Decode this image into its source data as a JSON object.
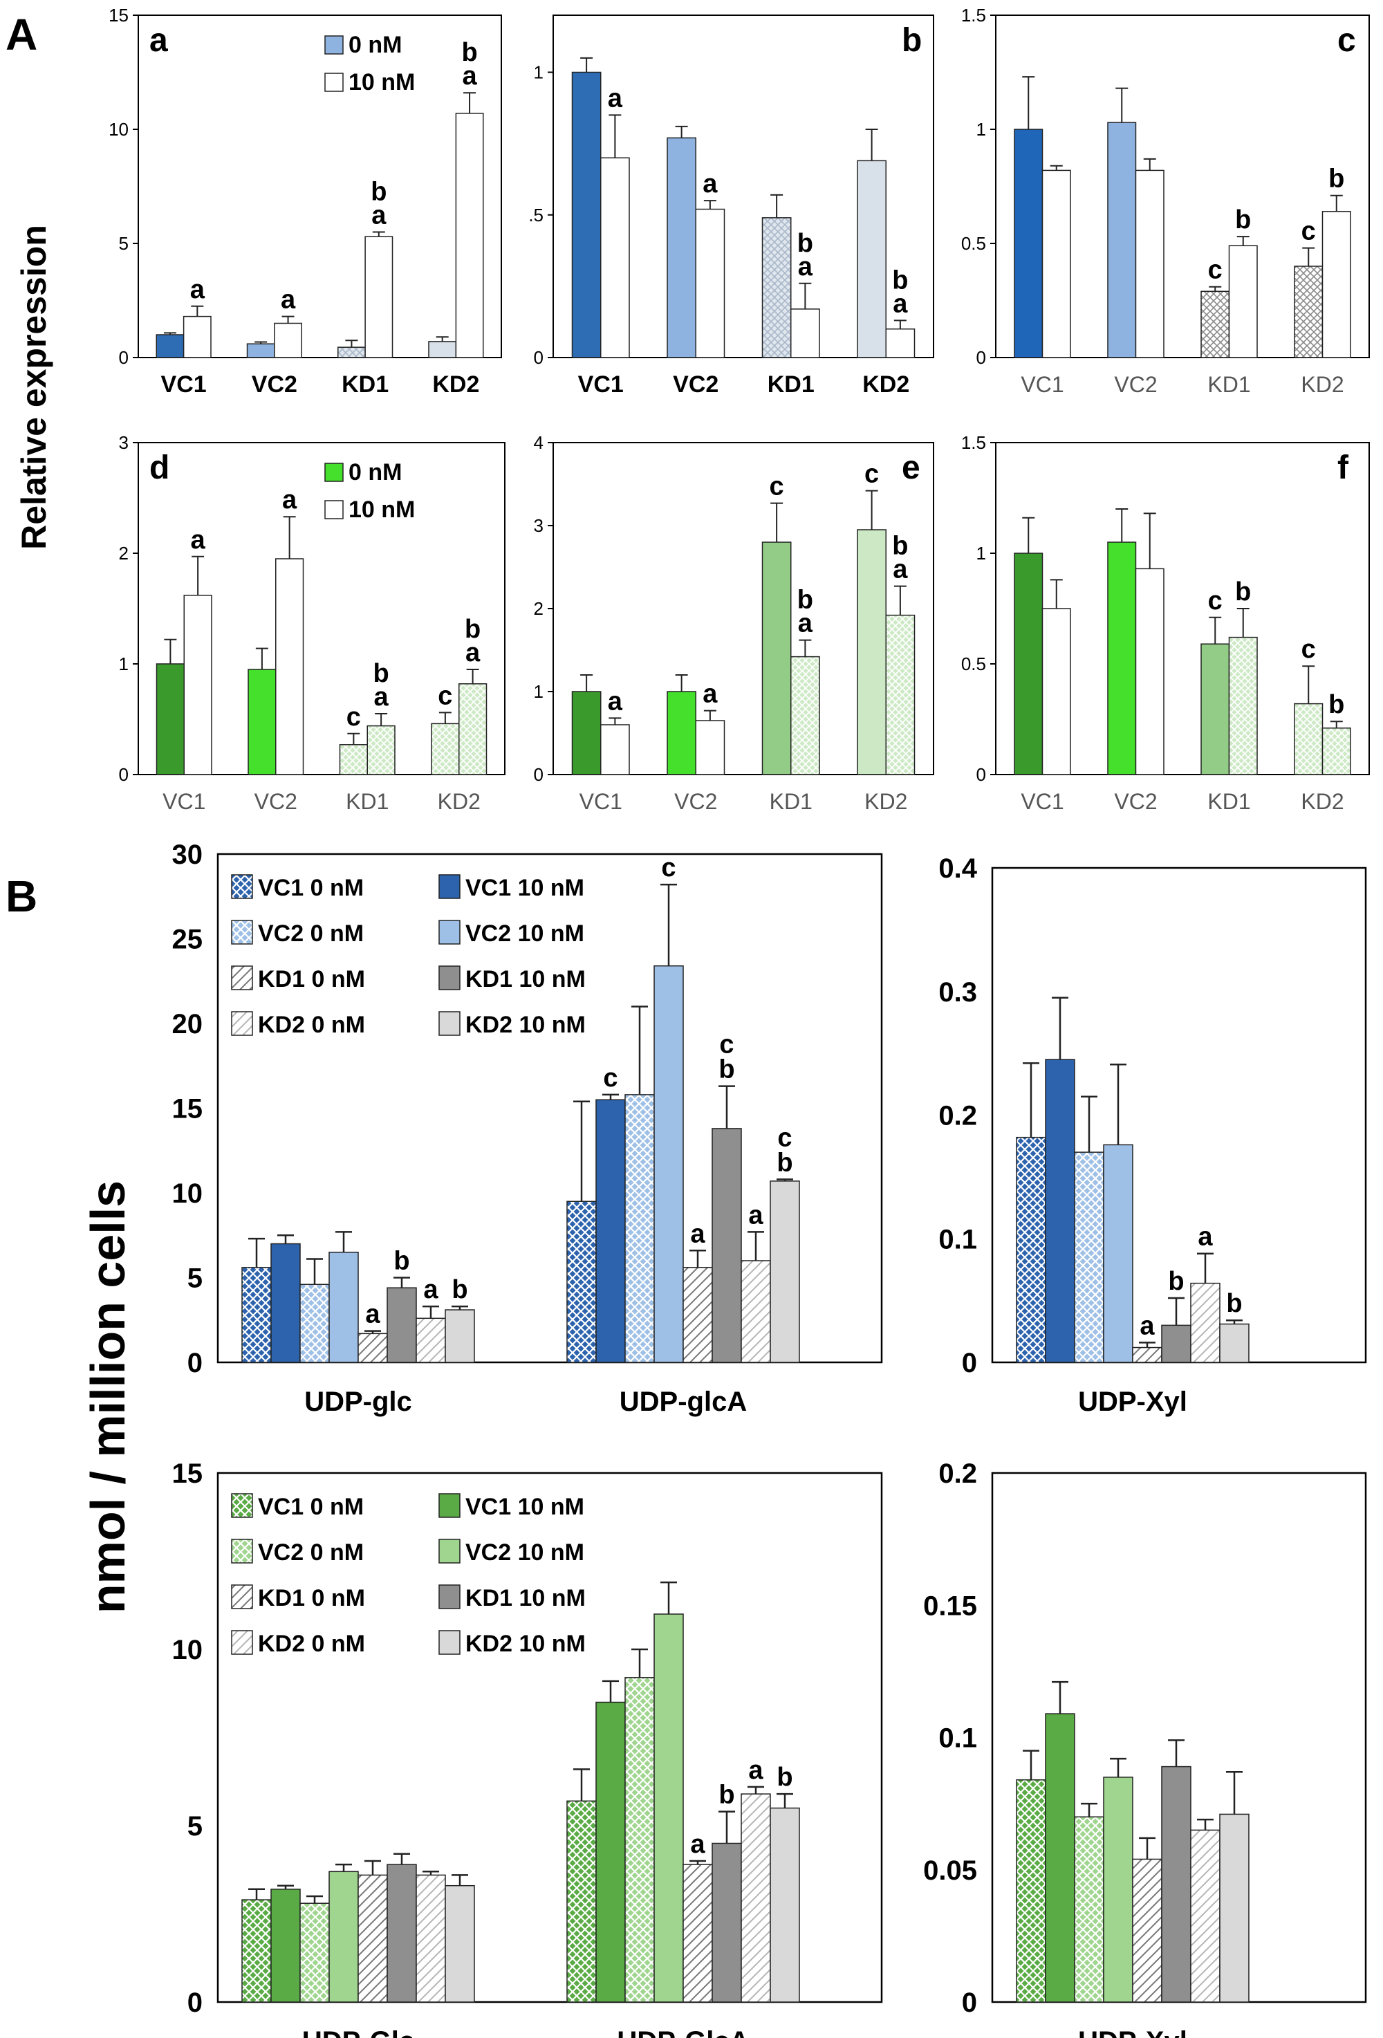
{
  "panel_letters": {
    "A": "A",
    "B": "B"
  },
  "axis_titles": {
    "relative_expression": "Relative expression",
    "nmol_cells": "nmol / million cells"
  },
  "colors": {
    "blue": {
      "vc1": "#2e6db4",
      "vc2": "#8fb3e0",
      "kd1": "#b8c8dc",
      "kd2": "#d8e0ea"
    },
    "green": {
      "vc1": "#3a9a2c",
      "vc2": "#44e02c",
      "kd1": "#93cc86",
      "kd2": "#cce8c4"
    },
    "blueB": {
      "vc1_0": "#2d63ad",
      "vc1_10": "#2d63ad",
      "vc2_0": "#8fb3e0",
      "vc2_10": "#8fb3e0",
      "kd1_0": "#ffffff",
      "kd1_10": "#8f8f8f",
      "kd2_0": "#ffffff",
      "kd2_10": "#d9d9d9"
    },
    "greenB": {
      "vc1_0": "#5aab45",
      "vc1_10": "#5aab45",
      "vc2_0": "#9fd58e",
      "vc2_10": "#9fd58e",
      "kd1_0": "#ffffff",
      "kd1_10": "#8f8f8f",
      "kd2_0": "#ffffff",
      "kd2_10": "#d9d9d9"
    }
  },
  "chart_data": [
    {
      "id": "a",
      "panel_label": "a",
      "type": "bar",
      "categories": [
        "VC1",
        "VC2",
        "KD1",
        "KD2"
      ],
      "ylim": [
        0,
        15
      ],
      "yticks": [
        "0",
        "5",
        "10",
        "15"
      ],
      "legend": [
        "0 nM",
        "10 nM"
      ],
      "series": [
        {
          "name": "0 nM",
          "values": [
            1.0,
            0.6,
            0.45,
            0.7
          ],
          "errors": [
            0.08,
            0.08,
            0.3,
            0.2
          ]
        },
        {
          "name": "10 nM",
          "values": [
            1.8,
            1.5,
            5.3,
            10.7
          ],
          "errors": [
            0.45,
            0.3,
            0.2,
            0.9
          ]
        }
      ],
      "annotations": [
        {
          "series": 1,
          "index": 0,
          "lines": [
            "a"
          ]
        },
        {
          "series": 1,
          "index": 1,
          "lines": [
            "a"
          ]
        },
        {
          "series": 1,
          "index": 2,
          "lines": [
            "b",
            "a"
          ]
        },
        {
          "series": 1,
          "index": 3,
          "lines": [
            "b",
            "a"
          ]
        }
      ]
    },
    {
      "id": "b",
      "panel_label": "b",
      "type": "bar",
      "categories": [
        "VC1",
        "VC2",
        "KD1",
        "KD2"
      ],
      "ylim": [
        0,
        1.2
      ],
      "yticks": [
        "0",
        ".5",
        "1"
      ],
      "ytick_values": [
        0,
        0.5,
        1
      ],
      "series": [
        {
          "name": "0 nM",
          "values": [
            1.0,
            0.77,
            0.49,
            0.69
          ],
          "errors": [
            0.05,
            0.04,
            0.08,
            0.11
          ]
        },
        {
          "name": "10 nM",
          "values": [
            0.7,
            0.52,
            0.17,
            0.1
          ],
          "errors": [
            0.15,
            0.03,
            0.09,
            0.03
          ]
        }
      ],
      "annotations": [
        {
          "series": 1,
          "index": 0,
          "lines": [
            "a"
          ]
        },
        {
          "series": 1,
          "index": 1,
          "lines": [
            "a"
          ]
        },
        {
          "series": 1,
          "index": 2,
          "lines": [
            "b",
            "a"
          ]
        },
        {
          "series": 1,
          "index": 3,
          "lines": [
            "b",
            "a"
          ]
        }
      ]
    },
    {
      "id": "c",
      "panel_label": "c",
      "type": "bar",
      "categories": [
        "VC1",
        "VC2",
        "KD1",
        "KD2"
      ],
      "ylim": [
        0,
        1.5
      ],
      "yticks": [
        "0",
        "0.5",
        "1",
        "1.5"
      ],
      "ytick_values": [
        0,
        0.5,
        1,
        1.5
      ],
      "series": [
        {
          "name": "0 nM",
          "values": [
            1.0,
            1.03,
            0.29,
            0.4
          ],
          "errors": [
            0.23,
            0.15,
            0.02,
            0.08
          ]
        },
        {
          "name": "10 nM",
          "values": [
            0.82,
            0.82,
            0.49,
            0.64
          ],
          "errors": [
            0.02,
            0.05,
            0.04,
            0.07
          ]
        }
      ],
      "annotations": [
        {
          "series": 0,
          "index": 2,
          "lines": [
            "c"
          ]
        },
        {
          "series": 0,
          "index": 3,
          "lines": [
            "c"
          ]
        },
        {
          "series": 1,
          "index": 2,
          "lines": [
            "b"
          ]
        },
        {
          "series": 1,
          "index": 3,
          "lines": [
            "b"
          ]
        }
      ]
    },
    {
      "id": "d",
      "panel_label": "d",
      "type": "bar",
      "categories": [
        "VC1",
        "VC2",
        "KD1",
        "KD2"
      ],
      "ylim": [
        0,
        3
      ],
      "yticks": [
        "0",
        "1",
        "2",
        "3"
      ],
      "ytick_values": [
        0,
        1,
        2,
        3
      ],
      "legend": [
        "0 nM",
        "10 nM"
      ],
      "series": [
        {
          "name": "0 nM",
          "values": [
            1.0,
            0.95,
            0.27,
            0.46
          ],
          "errors": [
            0.22,
            0.19,
            0.1,
            0.1
          ]
        },
        {
          "name": "10 nM",
          "values": [
            1.62,
            1.95,
            0.44,
            0.82
          ],
          "errors": [
            0.35,
            0.38,
            0.11,
            0.13
          ]
        }
      ],
      "annotations": [
        {
          "series": 1,
          "index": 0,
          "lines": [
            "a"
          ]
        },
        {
          "series": 1,
          "index": 1,
          "lines": [
            "a"
          ]
        },
        {
          "series": 0,
          "index": 2,
          "lines": [
            "c"
          ]
        },
        {
          "series": 0,
          "index": 3,
          "lines": [
            "c"
          ]
        },
        {
          "series": 1,
          "index": 2,
          "lines": [
            "b",
            "a"
          ]
        },
        {
          "series": 1,
          "index": 3,
          "lines": [
            "b",
            "a"
          ]
        }
      ]
    },
    {
      "id": "e",
      "panel_label": "e",
      "type": "bar",
      "categories": [
        "VC1",
        "VC2",
        "KD1",
        "KD2"
      ],
      "ylim": [
        0,
        4
      ],
      "yticks": [
        "0",
        "1",
        "2",
        "3",
        "4"
      ],
      "ytick_values": [
        0,
        1,
        2,
        3,
        4
      ],
      "series": [
        {
          "name": "0 nM",
          "values": [
            1.0,
            1.0,
            2.8,
            2.95
          ],
          "errors": [
            0.2,
            0.2,
            0.47,
            0.47
          ]
        },
        {
          "name": "10 nM",
          "values": [
            0.6,
            0.65,
            1.42,
            1.92
          ],
          "errors": [
            0.08,
            0.12,
            0.2,
            0.35
          ]
        }
      ],
      "annotations": [
        {
          "series": 1,
          "index": 0,
          "lines": [
            "a"
          ]
        },
        {
          "series": 1,
          "index": 1,
          "lines": [
            "a"
          ]
        },
        {
          "series": 0,
          "index": 2,
          "lines": [
            "c"
          ]
        },
        {
          "series": 0,
          "index": 3,
          "lines": [
            "c"
          ]
        },
        {
          "series": 1,
          "index": 2,
          "lines": [
            "b",
            "a"
          ]
        },
        {
          "series": 1,
          "index": 3,
          "lines": [
            "b",
            "a"
          ]
        }
      ]
    },
    {
      "id": "f",
      "panel_label": "f",
      "type": "bar",
      "categories": [
        "VC1",
        "VC2",
        "KD1",
        "KD2"
      ],
      "ylim": [
        0,
        1.5
      ],
      "yticks": [
        "0",
        "0.5",
        "1",
        "1.5"
      ],
      "ytick_values": [
        0,
        0.5,
        1,
        1.5
      ],
      "series": [
        {
          "name": "0 nM",
          "values": [
            1.0,
            1.05,
            0.59,
            0.32
          ],
          "errors": [
            0.16,
            0.15,
            0.12,
            0.17
          ]
        },
        {
          "name": "10 nM",
          "values": [
            0.75,
            0.93,
            0.62,
            0.21
          ],
          "errors": [
            0.13,
            0.25,
            0.13,
            0.03
          ]
        }
      ],
      "annotations": [
        {
          "series": 0,
          "index": 2,
          "lines": [
            "c"
          ]
        },
        {
          "series": 0,
          "index": 3,
          "lines": [
            "c"
          ]
        },
        {
          "series": 1,
          "index": 2,
          "lines": [
            "b"
          ]
        },
        {
          "series": 1,
          "index": 3,
          "lines": [
            "b"
          ]
        }
      ]
    },
    {
      "id": "B1",
      "type": "bar",
      "categories": [
        "UDP-glc",
        "UDP-glcA"
      ],
      "ylim": [
        0,
        30
      ],
      "yticks": [
        "0",
        "5",
        "10",
        "15",
        "20",
        "25",
        "30"
      ],
      "legend": [
        "VC1 0 nM",
        "VC1 10 nM",
        "VC2 0 nM",
        "VC2 10 nM",
        "KD1 0 nM",
        "KD1 10 nM",
        "KD2 0 nM",
        "KD2 10 nM"
      ],
      "series": [
        {
          "name": "VC1 0 nM",
          "values": [
            5.6,
            9.5
          ],
          "errors": [
            1.7,
            5.9
          ]
        },
        {
          "name": "VC1 10 nM",
          "values": [
            7.0,
            15.5
          ],
          "errors": [
            0.5,
            0.3
          ]
        },
        {
          "name": "VC2 0 nM",
          "values": [
            4.6,
            15.8
          ],
          "errors": [
            1.5,
            5.2
          ]
        },
        {
          "name": "VC2 10 nM",
          "values": [
            6.5,
            23.4
          ],
          "errors": [
            1.2,
            4.8
          ]
        },
        {
          "name": "KD1 0 nM",
          "values": [
            1.7,
            5.6
          ],
          "errors": [
            0.15,
            1.0
          ]
        },
        {
          "name": "KD1 10 nM",
          "values": [
            4.4,
            13.8
          ],
          "errors": [
            0.6,
            2.5
          ]
        },
        {
          "name": "KD2 0 nM",
          "values": [
            2.6,
            6.0
          ],
          "errors": [
            0.7,
            1.7
          ]
        },
        {
          "name": "KD2 10 nM",
          "values": [
            3.1,
            10.7
          ],
          "errors": [
            0.2,
            0.1
          ]
        }
      ],
      "annotations": [
        {
          "series": 4,
          "index": 0,
          "lines": [
            "a"
          ]
        },
        {
          "series": 5,
          "index": 0,
          "lines": [
            "b"
          ]
        },
        {
          "series": 6,
          "index": 0,
          "lines": [
            "a"
          ]
        },
        {
          "series": 7,
          "index": 0,
          "lines": [
            "b"
          ]
        },
        {
          "series": 1,
          "index": 1,
          "lines": [
            "c"
          ]
        },
        {
          "series": 3,
          "index": 1,
          "lines": [
            "c"
          ]
        },
        {
          "series": 4,
          "index": 1,
          "lines": [
            "a"
          ]
        },
        {
          "series": 5,
          "index": 1,
          "lines": [
            "c",
            "b"
          ]
        },
        {
          "series": 6,
          "index": 1,
          "lines": [
            "a"
          ]
        },
        {
          "series": 7,
          "index": 1,
          "lines": [
            "c",
            "b"
          ]
        }
      ]
    },
    {
      "id": "B2",
      "type": "bar",
      "categories": [
        "UDP-Xyl"
      ],
      "ylim": [
        0,
        0.4
      ],
      "yticks": [
        "0",
        "0.1",
        "0.2",
        "0.3",
        "0.4"
      ],
      "ytick_values": [
        0,
        0.1,
        0.2,
        0.3,
        0.4
      ],
      "series": [
        {
          "name": "VC1 0 nM",
          "values": [
            0.182
          ],
          "errors": [
            0.06
          ]
        },
        {
          "name": "VC1 10 nM",
          "values": [
            0.245
          ],
          "errors": [
            0.05
          ]
        },
        {
          "name": "VC2 0 nM",
          "values": [
            0.17
          ],
          "errors": [
            0.045
          ]
        },
        {
          "name": "VC2 10 nM",
          "values": [
            0.176
          ],
          "errors": [
            0.065
          ]
        },
        {
          "name": "KD1 0 nM",
          "values": [
            0.012
          ],
          "errors": [
            0.004
          ]
        },
        {
          "name": "KD1 10 nM",
          "values": [
            0.03
          ],
          "errors": [
            0.022
          ]
        },
        {
          "name": "KD2 0 nM",
          "values": [
            0.064
          ],
          "errors": [
            0.024
          ]
        },
        {
          "name": "KD2 10 nM",
          "values": [
            0.031
          ],
          "errors": [
            0.003
          ]
        }
      ],
      "annotations": [
        {
          "series": 4,
          "index": 0,
          "lines": [
            "a"
          ]
        },
        {
          "series": 5,
          "index": 0,
          "lines": [
            "b"
          ]
        },
        {
          "series": 6,
          "index": 0,
          "lines": [
            "a"
          ]
        },
        {
          "series": 7,
          "index": 0,
          "lines": [
            "b"
          ]
        }
      ]
    },
    {
      "id": "B3",
      "type": "bar",
      "categories": [
        "UDP-Glc",
        "UDP-GlcA"
      ],
      "ylim": [
        0,
        15
      ],
      "yticks": [
        "0",
        "5",
        "10",
        "15"
      ],
      "legend": [
        "VC1 0 nM",
        "VC1 10 nM",
        "VC2 0 nM",
        "VC2 10 nM",
        "KD1 0 nM",
        "KD1 10 nM",
        "KD2 0 nM",
        "KD2 10 nM"
      ],
      "series": [
        {
          "name": "VC1 0 nM",
          "values": [
            2.9,
            5.7
          ],
          "errors": [
            0.3,
            0.9
          ]
        },
        {
          "name": "VC1 10 nM",
          "values": [
            3.2,
            8.5
          ],
          "errors": [
            0.1,
            0.6
          ]
        },
        {
          "name": "VC2 0 nM",
          "values": [
            2.8,
            9.2
          ],
          "errors": [
            0.2,
            0.8
          ]
        },
        {
          "name": "VC2 10 nM",
          "values": [
            3.7,
            11.0
          ],
          "errors": [
            0.2,
            0.9
          ]
        },
        {
          "name": "KD1 0 nM",
          "values": [
            3.6,
            3.9
          ],
          "errors": [
            0.4,
            0.1
          ]
        },
        {
          "name": "KD1 10 nM",
          "values": [
            3.9,
            4.5
          ],
          "errors": [
            0.3,
            0.9
          ]
        },
        {
          "name": "KD2 0 nM",
          "values": [
            3.6,
            5.9
          ],
          "errors": [
            0.1,
            0.2
          ]
        },
        {
          "name": "KD2 10 nM",
          "values": [
            3.3,
            5.5
          ],
          "errors": [
            0.3,
            0.4
          ]
        }
      ],
      "annotations": [
        {
          "series": 4,
          "index": 1,
          "lines": [
            "a"
          ]
        },
        {
          "series": 5,
          "index": 1,
          "lines": [
            "b"
          ]
        },
        {
          "series": 6,
          "index": 1,
          "lines": [
            "a"
          ]
        },
        {
          "series": 7,
          "index": 1,
          "lines": [
            "b"
          ]
        }
      ]
    },
    {
      "id": "B4",
      "type": "bar",
      "categories": [
        "UDP-Xyl"
      ],
      "ylim": [
        0,
        0.2
      ],
      "yticks": [
        "0",
        "0.05",
        "0.1",
        "0.15",
        "0.2"
      ],
      "ytick_values": [
        0,
        0.05,
        0.1,
        0.15,
        0.2
      ],
      "series": [
        {
          "name": "VC1 0 nM",
          "values": [
            0.084
          ],
          "errors": [
            0.011
          ]
        },
        {
          "name": "VC1 10 nM",
          "values": [
            0.109
          ],
          "errors": [
            0.012
          ]
        },
        {
          "name": "VC2 0 nM",
          "values": [
            0.07
          ],
          "errors": [
            0.005
          ]
        },
        {
          "name": "VC2 10 nM",
          "values": [
            0.085
          ],
          "errors": [
            0.007
          ]
        },
        {
          "name": "KD1 0 nM",
          "values": [
            0.054
          ],
          "errors": [
            0.008
          ]
        },
        {
          "name": "KD1 10 nM",
          "values": [
            0.089
          ],
          "errors": [
            0.01
          ]
        },
        {
          "name": "KD2 0 nM",
          "values": [
            0.065
          ],
          "errors": [
            0.004
          ]
        },
        {
          "name": "KD2 10 nM",
          "values": [
            0.071
          ],
          "errors": [
            0.016
          ]
        }
      ],
      "annotations": []
    }
  ]
}
